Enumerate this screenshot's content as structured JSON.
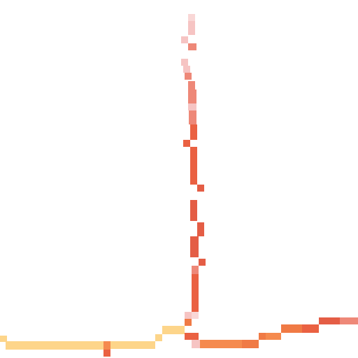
{
  "palette": {
    "background": "#ffffff",
    "yellow_light": "#fed991",
    "yellow": "#fdd58a",
    "orange": "#f58a4e",
    "orange_dark": "#f07a45",
    "red_orange": "#ea6142",
    "red": "#e45d45",
    "salmon": "#ee8878",
    "pink_light": "#f6c4c3",
    "pink_pale": "#f9d7d6"
  },
  "text": []
}
